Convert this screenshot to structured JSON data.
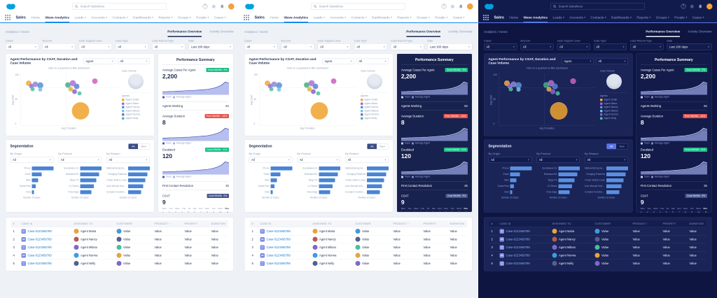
{
  "panels": [
    {
      "name": "panel-light",
      "theme": "t-light"
    },
    {
      "name": "panel-mixed",
      "theme": "t-mixed"
    },
    {
      "name": "panel-dark",
      "theme": "t-dark"
    }
  ],
  "icons": {
    "caret": "▾",
    "help": "?",
    "sort_asc": "↑"
  },
  "chrome": {
    "search_placeholder": "Search Salesforce",
    "app_name": "Sales",
    "tabs": [
      {
        "label": "Home"
      },
      {
        "label": "Wave Analytics"
      },
      {
        "label": "Leads"
      },
      {
        "label": "Accounts"
      },
      {
        "label": "Contacts"
      },
      {
        "label": "Dashboards"
      },
      {
        "label": "Reports"
      },
      {
        "label": "Groups"
      },
      {
        "label": "People"
      },
      {
        "label": "Cases"
      }
    ]
  },
  "breadcrumb": "Analytics / Home",
  "view_tabs": {
    "active": "Performance Overview",
    "inactive": "Activity Overview"
  },
  "filters": {
    "f0": {
      "label": "Cases",
      "value": "All"
    },
    "f1": {
      "label": "Account",
      "value": "All"
    },
    "f2": {
      "label": "Case Support Level",
      "value": "All"
    },
    "f3": {
      "label": "Case Type",
      "value": "All"
    },
    "f4": {
      "label": "Case Record Type",
      "value": "All"
    },
    "date": {
      "label": "Date",
      "value": "Last 180 days"
    }
  },
  "scatter": {
    "title": "Agent Performance by CSAT, Duration and Case Volume",
    "agent_label": "Agent",
    "agent_value": "All",
    "annotation": "Click on a quadrant to filter dashboard",
    "ylabel": "Avg CSAT",
    "xlabel": "Avg # Duration",
    "yticks": [
      "100",
      "50",
      "0"
    ],
    "volume_legend": "Case Volume",
    "agents_legend": "Agents",
    "agents": [
      {
        "name": "Agent Smith",
        "color": "#f2a93b"
      },
      {
        "name": "Agent Maria",
        "color": "#9a6bd0"
      },
      {
        "name": "Agent Nancy",
        "color": "#5a8fd6"
      },
      {
        "name": "Agent Milano",
        "color": "#6fc3e8"
      },
      {
        "name": "Agent Norma",
        "color": "#7b68c9"
      },
      {
        "name": "Agent Nelly",
        "color": "#46bfa0"
      }
    ],
    "bubbles": [
      {
        "x": 8,
        "y": 20,
        "r": 8,
        "c": "#f2a93b"
      },
      {
        "x": 11,
        "y": 25,
        "r": 7,
        "c": "#9a6bd0"
      },
      {
        "x": 15,
        "y": 22,
        "r": 8,
        "c": "#8f86d8"
      },
      {
        "x": 20,
        "y": 24,
        "r": 9,
        "c": "#5a8fd6"
      },
      {
        "x": 12,
        "y": 31,
        "r": 6,
        "c": "#46bfa0"
      },
      {
        "x": 20,
        "y": 32,
        "r": 6,
        "c": "#6fc3e8"
      },
      {
        "x": 49,
        "y": 23,
        "r": 8,
        "c": "#3fae85"
      },
      {
        "x": 54,
        "y": 20,
        "r": 9,
        "c": "#b06fd4"
      },
      {
        "x": 58,
        "y": 26,
        "r": 8,
        "c": "#5a7fd8"
      },
      {
        "x": 52,
        "y": 31,
        "r": 7,
        "c": "#e4b23c"
      },
      {
        "x": 56,
        "y": 36,
        "r": 7,
        "c": "#8f5fc9"
      },
      {
        "x": 61,
        "y": 39,
        "r": 6,
        "c": "#46bfa0"
      },
      {
        "x": 77,
        "y": 16,
        "r": 8,
        "c": "#cc5fc2"
      },
      {
        "x": 62,
        "y": 72,
        "r": 25,
        "c": "#efa32d"
      }
    ]
  },
  "segmentation": {
    "title": "Segmentation",
    "toggle": {
      "active": "All",
      "inactive": "New"
    },
    "axis_caption": "Number of Cases",
    "groups": [
      {
        "label": "By Origin",
        "value": "All",
        "bars": [
          {
            "label": "Phone",
            "value": 100
          },
          {
            "label": "Email",
            "value": 46
          },
          {
            "label": "Web",
            "value": 30
          },
          {
            "label": "Social Post",
            "value": 18
          },
          {
            "label": "Chat",
            "value": 10
          }
        ]
      },
      {
        "label": "By Product",
        "value": "All",
        "bars": [
          {
            "label": "Soundwave S1",
            "value": 100
          },
          {
            "label": "Bluewave B2",
            "value": 88
          },
          {
            "label": "Tango T3",
            "value": 76
          },
          {
            "label": "LX Series",
            "value": 64
          },
          {
            "label": "Flow Edge",
            "value": 52
          }
        ]
      },
      {
        "label": "By Reason",
        "value": "All",
        "bars": [
          {
            "label": "Malfunctioning Not Safe",
            "value": 100
          },
          {
            "label": "Charging Problems",
            "value": 90
          },
          {
            "label": "Power Switch Loose",
            "value": 80
          },
          {
            "label": "User Manual Unclear",
            "value": 70
          },
          {
            "label": "Complex Functionality",
            "value": 60
          }
        ]
      }
    ]
  },
  "summary": {
    "title": "Performance Summary",
    "legend": {
      "team": "Team",
      "avg": "Average Agent"
    },
    "days": [
      "Mon",
      "Tue",
      "Wed",
      "Thu",
      "Fri",
      "Sat",
      "Sun",
      "Mon",
      "Tue",
      "Wed",
      "Thu"
    ],
    "dates": [
      "1",
      "2",
      "3",
      "4",
      "5",
      "6",
      "7",
      "8",
      "9",
      "10",
      "11"
    ],
    "kpis": {
      "cases": {
        "label": "Average Cases Per Agent",
        "value": "2,200",
        "badge": "Good Wk/Wk",
        "delta": "9%",
        "spark": {
          "main": [
            10,
            10,
            11,
            11,
            12,
            12,
            13,
            14,
            14,
            15,
            16,
            17,
            18,
            20,
            23,
            27,
            33,
            44,
            40
          ],
          "avg": [
            8,
            8,
            9,
            9,
            9,
            10,
            10,
            11,
            11,
            12,
            13,
            13,
            15,
            16,
            19,
            22,
            27,
            36,
            33
          ]
        }
      },
      "agents_working": {
        "label": "Agents Working",
        "value": "84"
      },
      "duration": {
        "label": "Average Duration",
        "value": "8",
        "badge": "Poor Wk/Wk",
        "delta": "-14%",
        "spark": {
          "main": [
            9,
            9,
            10,
            10,
            11,
            11,
            12,
            12,
            13,
            14,
            15,
            16,
            17,
            19,
            22,
            26,
            32,
            43,
            39
          ],
          "avg": [
            7,
            7,
            8,
            8,
            9,
            9,
            10,
            10,
            11,
            11,
            12,
            13,
            14,
            16,
            18,
            21,
            26,
            35,
            32
          ]
        }
      },
      "escalated": {
        "label": "Escalated",
        "value": "120",
        "badge": "Good Wk/Wk",
        "delta": "11%",
        "spark": {
          "main": [
            8,
            8,
            9,
            9,
            10,
            10,
            11,
            12,
            12,
            13,
            14,
            15,
            16,
            18,
            21,
            25,
            31,
            42,
            38
          ],
          "avg": [
            6,
            6,
            7,
            7,
            8,
            8,
            9,
            9,
            10,
            11,
            12,
            12,
            14,
            15,
            18,
            21,
            25,
            34,
            31
          ]
        }
      },
      "fcr": {
        "label": "First Contact Resolution",
        "value": "25"
      },
      "csat": {
        "label": "CSAT",
        "value": "9",
        "badge": "Goal Wk/Wk",
        "delta": "9%"
      }
    }
  },
  "table": {
    "headers": [
      "#",
      "Case Id",
      "Assigned To",
      "Customer",
      "Product",
      "Priority",
      "Duration"
    ],
    "rows": [
      {
        "num": "1",
        "case_id": "Case-0123456789",
        "agent": "Agent Maria",
        "agent_color": "#e8a33d",
        "customer": "Value",
        "customer_color": "#3f9cd9",
        "product": "Value",
        "priority": "Value",
        "duration": "Value"
      },
      {
        "num": "2",
        "case_id": "Case-0123456789",
        "agent": "Agent Nancy",
        "agent_color": "#b65c4e",
        "customer": "Value",
        "customer_color": "#53608f",
        "product": "Value",
        "priority": "Value",
        "duration": "Value"
      },
      {
        "num": "3",
        "case_id": "Case-0123456789",
        "agent": "Agent Milano",
        "agent_color": "#7f68c9",
        "customer": "Value",
        "customer_color": "#46bfa0",
        "product": "Value",
        "priority": "Value",
        "duration": "Value"
      },
      {
        "num": "4",
        "case_id": "Case-0123456789",
        "agent": "Agent Norma",
        "agent_color": "#3f9cd9",
        "customer": "Value",
        "customer_color": "#e8a33d",
        "product": "Value",
        "priority": "Value",
        "duration": "Value"
      },
      {
        "num": "5",
        "case_id": "Case-0123456789",
        "agent": "Agent Nelly",
        "agent_color": "#53608f",
        "customer": "Value",
        "customer_color": "#7f68c9",
        "product": "Value",
        "priority": "Value",
        "duration": "Value"
      }
    ]
  }
}
